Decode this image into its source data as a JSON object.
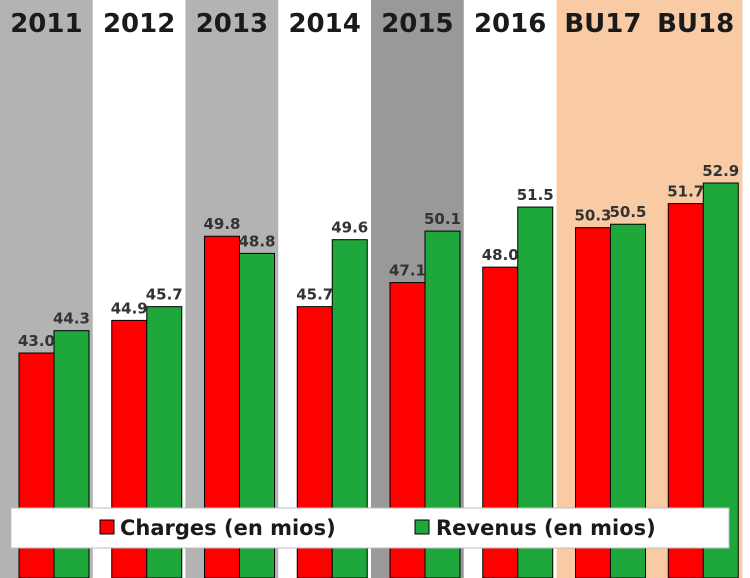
{
  "chart_data": {
    "type": "bar",
    "categories": [
      "2011",
      "2012",
      "2013",
      "2014",
      "2015",
      "2016",
      "BU17",
      "BU18"
    ],
    "series": [
      {
        "name": "Charges (en mios)",
        "values": [
          43.0,
          44.9,
          49.8,
          45.7,
          47.1,
          48.0,
          50.3,
          51.7
        ]
      },
      {
        "name": "Revenus (en mios)",
        "values": [
          44.3,
          45.7,
          48.8,
          49.6,
          50.1,
          51.5,
          50.5,
          52.9
        ]
      }
    ],
    "value_labels": [
      [
        "43.0",
        "44.9",
        "49.8",
        "45.7",
        "47.1",
        "48.0",
        "50.3",
        "51.7"
      ],
      [
        "44.3",
        "45.7",
        "48.8",
        "49.6",
        "50.1",
        "51.5",
        "50.5",
        "52.9"
      ]
    ],
    "title": "",
    "xlabel": "",
    "ylabel": "",
    "ylim": [
      32,
      56
    ],
    "grid": false,
    "legend": "bottom",
    "colors": {
      "series": [
        "#ff0000",
        "#1ea83c"
      ],
      "bands": [
        "#b3b3b3",
        "#ffffff",
        "#b3b3b3",
        "#ffffff",
        "#999999",
        "#ffffff",
        "#f8cba4",
        "#f8cba4"
      ]
    }
  }
}
